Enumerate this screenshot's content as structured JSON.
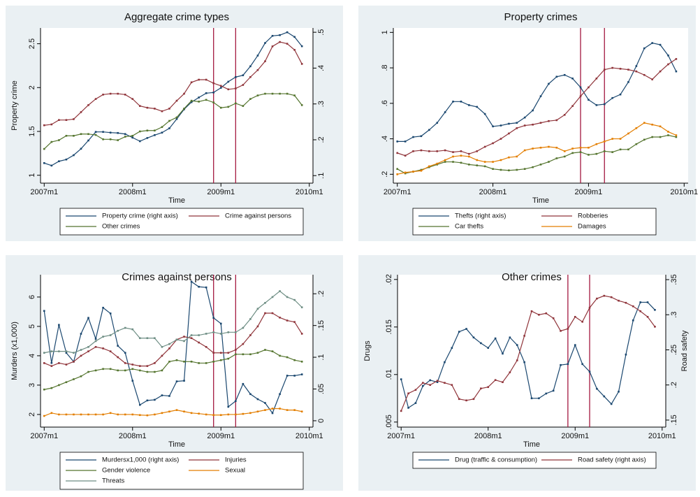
{
  "chart_data": [
    {
      "type": "line",
      "title": "Aggregate crime types",
      "xlabel": "Time",
      "ylabel": "Property crime",
      "x": [
        "2007m1",
        "2007m2",
        "2007m3",
        "2007m4",
        "2007m5",
        "2007m6",
        "2007m7",
        "2007m8",
        "2007m9",
        "2007m10",
        "2007m11",
        "2007m12",
        "2008m1",
        "2008m2",
        "2008m3",
        "2008m4",
        "2008m5",
        "2008m6",
        "2008m7",
        "2008m8",
        "2008m9",
        "2008m10",
        "2008m11",
        "2008m12",
        "2009m1",
        "2009m2",
        "2009m3",
        "2009m4",
        "2009m5",
        "2009m6",
        "2009m7",
        "2009m8",
        "2009m9",
        "2009m10",
        "2009m11",
        "2009m12"
      ],
      "xticks": [
        "2007m1",
        "2008m1",
        "2009m1",
        "2010m1"
      ],
      "ylim": [
        0.91,
        2.68
      ],
      "yticks": [
        1,
        1.5,
        2,
        2.5
      ],
      "y2lim": [
        0.079,
        0.512
      ],
      "y2ticks": [
        {
          "value": 0.1,
          "label": ".1"
        },
        {
          "value": 0.2,
          "label": ".2"
        },
        {
          "value": 0.3,
          "label": ".3"
        },
        {
          "value": 0.4,
          "label": ".4"
        },
        {
          "value": 0.5,
          "label": ".5"
        }
      ],
      "vlines": [
        "2008m12",
        "2009m3"
      ],
      "vline_color": "#a3173f",
      "series": [
        {
          "name": "Property crime (right axis)",
          "color": "#1a476f",
          "axis": "y2",
          "values": [
            0.135,
            0.128,
            0.14,
            0.145,
            0.157,
            0.175,
            0.198,
            0.222,
            0.222,
            0.22,
            0.219,
            0.216,
            0.206,
            0.196,
            0.205,
            0.213,
            0.22,
            0.232,
            0.258,
            0.285,
            0.305,
            0.318,
            0.33,
            0.332,
            0.345,
            0.362,
            0.375,
            0.38,
            0.405,
            0.435,
            0.47,
            0.49,
            0.492,
            0.5,
            0.487,
            0.461
          ]
        },
        {
          "name": "Crime against persons",
          "color": "#90353b",
          "values": [
            1.57,
            1.58,
            1.63,
            1.63,
            1.64,
            1.72,
            1.8,
            1.87,
            1.92,
            1.93,
            1.93,
            1.92,
            1.87,
            1.79,
            1.77,
            1.76,
            1.73,
            1.76,
            1.85,
            1.93,
            2.06,
            2.09,
            2.09,
            2.05,
            2.02,
            1.98,
            1.99,
            2.03,
            2.12,
            2.2,
            2.3,
            2.47,
            2.52,
            2.5,
            2.43,
            2.27
          ]
        },
        {
          "name": "Other crimes",
          "color": "#55752f",
          "values": [
            1.3,
            1.38,
            1.4,
            1.45,
            1.45,
            1.47,
            1.47,
            1.46,
            1.41,
            1.41,
            1.4,
            1.44,
            1.45,
            1.5,
            1.51,
            1.51,
            1.55,
            1.62,
            1.66,
            1.76,
            1.85,
            1.84,
            1.86,
            1.83,
            1.77,
            1.78,
            1.82,
            1.79,
            1.87,
            1.91,
            1.93,
            1.93,
            1.93,
            1.93,
            1.91,
            1.8
          ]
        }
      ]
    },
    {
      "type": "line",
      "title": "Property crimes",
      "xlabel": "Time",
      "x": [
        "2007m1",
        "2007m2",
        "2007m3",
        "2007m4",
        "2007m5",
        "2007m6",
        "2007m7",
        "2007m8",
        "2007m9",
        "2007m10",
        "2007m11",
        "2007m12",
        "2008m1",
        "2008m2",
        "2008m3",
        "2008m4",
        "2008m5",
        "2008m6",
        "2008m7",
        "2008m8",
        "2008m9",
        "2008m10",
        "2008m11",
        "2008m12",
        "2009m1",
        "2009m2",
        "2009m3",
        "2009m4",
        "2009m5",
        "2009m6",
        "2009m7",
        "2009m8",
        "2009m9",
        "2009m10",
        "2009m11",
        "2009m12"
      ],
      "xticks": [
        "2007m1",
        "2008m1",
        "2009m1",
        "2010m1"
      ],
      "ylim": [
        0.15,
        1.025
      ],
      "yticks": [
        {
          "value": 0.2,
          "label": ".2"
        },
        {
          "value": 0.4,
          "label": ".4"
        },
        {
          "value": 0.6,
          "label": ".6"
        },
        {
          "value": 0.8,
          "label": ".8"
        },
        1
      ],
      "vlines": [
        "2008m12",
        "2009m3"
      ],
      "vline_color": "#a3173f",
      "series": [
        {
          "name": "Thefts (right axis)",
          "color": "#1a476f",
          "values": [
            0.385,
            0.385,
            0.41,
            0.415,
            0.45,
            0.49,
            0.55,
            0.61,
            0.61,
            0.59,
            0.58,
            0.54,
            0.47,
            0.475,
            0.485,
            0.49,
            0.52,
            0.56,
            0.64,
            0.71,
            0.75,
            0.76,
            0.74,
            0.69,
            0.62,
            0.59,
            0.595,
            0.63,
            0.65,
            0.72,
            0.81,
            0.91,
            0.94,
            0.93,
            0.87,
            0.78
          ]
        },
        {
          "name": "Robberies",
          "color": "#90353b",
          "values": [
            0.32,
            0.305,
            0.33,
            0.335,
            0.33,
            0.33,
            0.335,
            0.325,
            0.33,
            0.315,
            0.33,
            0.355,
            0.375,
            0.4,
            0.43,
            0.46,
            0.475,
            0.48,
            0.49,
            0.5,
            0.505,
            0.535,
            0.585,
            0.64,
            0.69,
            0.74,
            0.79,
            0.8,
            0.795,
            0.79,
            0.78,
            0.76,
            0.735,
            0.78,
            0.82,
            0.85
          ]
        },
        {
          "name": "Car thefts",
          "color": "#55752f",
          "values": [
            0.23,
            0.205,
            0.215,
            0.225,
            0.24,
            0.255,
            0.27,
            0.27,
            0.265,
            0.255,
            0.25,
            0.245,
            0.23,
            0.225,
            0.222,
            0.225,
            0.23,
            0.24,
            0.255,
            0.27,
            0.29,
            0.3,
            0.32,
            0.325,
            0.31,
            0.315,
            0.33,
            0.325,
            0.34,
            0.34,
            0.37,
            0.395,
            0.41,
            0.41,
            0.42,
            0.41
          ]
        },
        {
          "name": "Damages",
          "color": "#e37e00",
          "values": [
            0.2,
            0.21,
            0.215,
            0.22,
            0.245,
            0.26,
            0.28,
            0.3,
            0.305,
            0.3,
            0.28,
            0.27,
            0.27,
            0.28,
            0.295,
            0.3,
            0.335,
            0.345,
            0.35,
            0.355,
            0.35,
            0.33,
            0.345,
            0.35,
            0.35,
            0.37,
            0.385,
            0.4,
            0.4,
            0.43,
            0.46,
            0.49,
            0.48,
            0.47,
            0.44,
            0.42
          ]
        }
      ]
    },
    {
      "type": "line",
      "title": "Crimes against persons",
      "xlabel": "Time",
      "ylabel": "Murders (x1,000)",
      "x": [
        "2007m1",
        "2007m2",
        "2007m3",
        "2007m4",
        "2007m5",
        "2007m6",
        "2007m7",
        "2007m8",
        "2007m9",
        "2007m10",
        "2007m11",
        "2007m12",
        "2008m1",
        "2008m2",
        "2008m3",
        "2008m4",
        "2008m5",
        "2008m6",
        "2008m7",
        "2008m8",
        "2008m9",
        "2008m10",
        "2008m11",
        "2008m12",
        "2009m1",
        "2009m2",
        "2009m3",
        "2009m4",
        "2009m5",
        "2009m6",
        "2009m7",
        "2009m8",
        "2009m9",
        "2009m10",
        "2009m11",
        "2009m12"
      ],
      "xticks": [
        "2007m1",
        "2008m1",
        "2009m1",
        "2010m1"
      ],
      "ylim": [
        1.57,
        6.76
      ],
      "yticks": [
        2,
        3,
        4,
        5,
        6
      ],
      "y2lim": [
        -0.01,
        0.23
      ],
      "y2ticks": [
        0,
        {
          "value": 0.05,
          "label": ".05"
        },
        {
          "value": 0.1,
          "label": ".1"
        },
        {
          "value": 0.15,
          "label": ".15"
        },
        {
          "value": 0.2,
          "label": ".2"
        }
      ],
      "vlines": [
        "2008m12",
        "2009m3"
      ],
      "vline_color": "#a3173f",
      "series": [
        {
          "name": "Murdersx1,000 (right axis)",
          "color": "#1a476f",
          "axis": "y2",
          "values": [
            0.173,
            0.091,
            0.151,
            0.107,
            0.093,
            0.137,
            0.162,
            0.129,
            0.178,
            0.169,
            0.118,
            0.107,
            0.063,
            0.025,
            0.032,
            0.033,
            0.04,
            0.039,
            0.062,
            0.063,
            0.219,
            0.211,
            0.21,
            0.162,
            0.153,
            0.022,
            0.031,
            0.058,
            0.042,
            0.034,
            0.028,
            0.012,
            0.042,
            0.071,
            0.071,
            0.073
          ]
        },
        {
          "name": "Injuries",
          "color": "#90353b",
          "values": [
            3.75,
            3.65,
            3.75,
            3.7,
            3.8,
            4.0,
            4.15,
            4.3,
            4.25,
            4.15,
            3.95,
            3.75,
            3.7,
            3.65,
            3.65,
            3.75,
            4.0,
            4.25,
            4.55,
            4.65,
            4.6,
            4.45,
            4.3,
            4.1,
            4.1,
            4.1,
            4.2,
            4.4,
            4.7,
            5.0,
            5.45,
            5.45,
            5.3,
            5.2,
            5.15,
            4.75
          ]
        },
        {
          "name": "Gender violence",
          "color": "#55752f",
          "values": [
            2.85,
            2.9,
            3.0,
            3.1,
            3.2,
            3.3,
            3.45,
            3.5,
            3.55,
            3.55,
            3.5,
            3.5,
            3.55,
            3.5,
            3.45,
            3.45,
            3.5,
            3.8,
            3.85,
            3.8,
            3.8,
            3.75,
            3.75,
            3.8,
            3.85,
            3.9,
            4.05,
            4.05,
            4.05,
            4.1,
            4.2,
            4.15,
            4.0,
            3.95,
            3.85,
            3.8
          ]
        },
        {
          "name": "Sexual",
          "color": "#e37e00",
          "values": [
            1.95,
            2.05,
            2.0,
            2.0,
            2.0,
            2.0,
            2.0,
            2.0,
            2.0,
            2.05,
            2.0,
            2.0,
            2.0,
            1.98,
            1.97,
            2.0,
            2.05,
            2.1,
            2.15,
            2.1,
            2.05,
            2.03,
            2.0,
            1.98,
            1.98,
            2.0,
            2.0,
            2.02,
            2.05,
            2.1,
            2.15,
            2.2,
            2.2,
            2.15,
            2.15,
            2.1
          ]
        },
        {
          "name": "Threats",
          "color": "#6e8e84",
          "values": [
            4.1,
            4.15,
            4.15,
            4.15,
            4.1,
            4.2,
            4.3,
            4.5,
            4.65,
            4.7,
            4.85,
            4.95,
            4.9,
            4.6,
            4.6,
            4.6,
            4.3,
            4.4,
            4.55,
            4.5,
            4.7,
            4.7,
            4.75,
            4.8,
            4.75,
            4.8,
            4.8,
            4.95,
            5.25,
            5.6,
            5.8,
            6.0,
            6.2,
            6.0,
            5.9,
            5.65
          ]
        }
      ]
    },
    {
      "type": "line",
      "title": "Other crimes",
      "xlabel": "Time",
      "ylabel": "Drugs",
      "y2label": "Road safety",
      "x": [
        "2007m1",
        "2007m2",
        "2007m3",
        "2007m4",
        "2007m5",
        "2007m6",
        "2007m7",
        "2007m8",
        "2007m9",
        "2007m10",
        "2007m11",
        "2007m12",
        "2008m1",
        "2008m2",
        "2008m3",
        "2008m4",
        "2008m5",
        "2008m6",
        "2008m7",
        "2008m8",
        "2008m9",
        "2008m10",
        "2008m11",
        "2008m12",
        "2009m1",
        "2009m2",
        "2009m3",
        "2009m4",
        "2009m5",
        "2009m6",
        "2009m7",
        "2009m8",
        "2009m9",
        "2009m10",
        "2009m11",
        "2009m12"
      ],
      "xticks": [
        "2007m1",
        "2008m1",
        "2009m1",
        "2010m1"
      ],
      "ylim": [
        0.00447,
        0.0205
      ],
      "yticks": [
        {
          "value": 0.005,
          "label": ".005"
        },
        {
          "value": 0.01,
          "label": ".01"
        },
        {
          "value": 0.015,
          "label": ".015"
        },
        {
          "value": 0.02,
          "label": ".02"
        }
      ],
      "y2lim": [
        0.14,
        0.357
      ],
      "y2ticks": [
        {
          "value": 0.15,
          "label": ".15"
        },
        {
          "value": 0.2,
          "label": ".2"
        },
        {
          "value": 0.25,
          "label": ".25"
        },
        {
          "value": 0.3,
          "label": ".3"
        },
        {
          "value": 0.35,
          "label": ".35"
        }
      ],
      "vlines": [
        "2008m12",
        "2009m3"
      ],
      "vline_color": "#a3173f",
      "series": [
        {
          "name": "Drug (traffic & consumption)",
          "color": "#1a476f",
          "values": [
            0.0095,
            0.0065,
            0.007,
            0.0088,
            0.0094,
            0.0092,
            0.0113,
            0.0128,
            0.0145,
            0.0148,
            0.0139,
            0.0133,
            0.0128,
            0.0138,
            0.0122,
            0.0139,
            0.0131,
            0.0113,
            0.0075,
            0.0075,
            0.008,
            0.0083,
            0.011,
            0.0111,
            0.0131,
            0.0111,
            0.0103,
            0.0085,
            0.0077,
            0.0069,
            0.0082,
            0.0121,
            0.0157,
            0.0176,
            0.0176,
            0.0168
          ]
        },
        {
          "name": "Road safety (right axis)",
          "color": "#90353b",
          "axis": "y2",
          "values": [
            0.163,
            0.188,
            0.193,
            0.203,
            0.2,
            0.206,
            0.203,
            0.2,
            0.18,
            0.178,
            0.18,
            0.195,
            0.197,
            0.207,
            0.204,
            0.218,
            0.235,
            0.27,
            0.305,
            0.3,
            0.302,
            0.295,
            0.277,
            0.28,
            0.297,
            0.29,
            0.31,
            0.323,
            0.327,
            0.325,
            0.32,
            0.317,
            0.312,
            0.305,
            0.297,
            0.283
          ]
        }
      ]
    }
  ]
}
